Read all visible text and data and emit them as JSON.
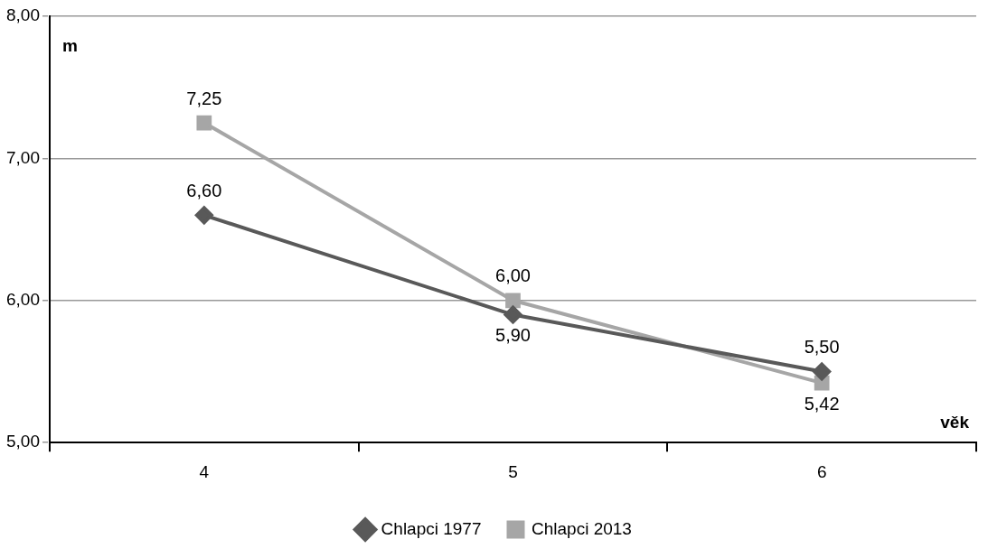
{
  "chart_data": {
    "type": "line",
    "xlabel": "věk",
    "ylabel": "m",
    "categories": [
      "4",
      "5",
      "6"
    ],
    "series": [
      {
        "name": "Chlapci 1977",
        "color": "#595959",
        "values": [
          6.6,
          5.9,
          5.5
        ],
        "value_labels": [
          "6,60",
          "5,90",
          "5,50"
        ],
        "marker": "diamond"
      },
      {
        "name": "Chlapci 2013",
        "color": "#a6a6a6",
        "values": [
          7.25,
          6.0,
          5.42
        ],
        "value_labels": [
          "7,25",
          "6,00",
          "5,42"
        ],
        "marker": "square"
      }
    ],
    "ylim": [
      5,
      8
    ],
    "yticks": [
      {
        "value": 5,
        "label": "5,00"
      },
      {
        "value": 6,
        "label": "6,00"
      },
      {
        "value": 7,
        "label": "7,00"
      },
      {
        "value": 8,
        "label": "8,00"
      }
    ],
    "grid": "y",
    "legend": "bottom",
    "line_style": "solid"
  }
}
